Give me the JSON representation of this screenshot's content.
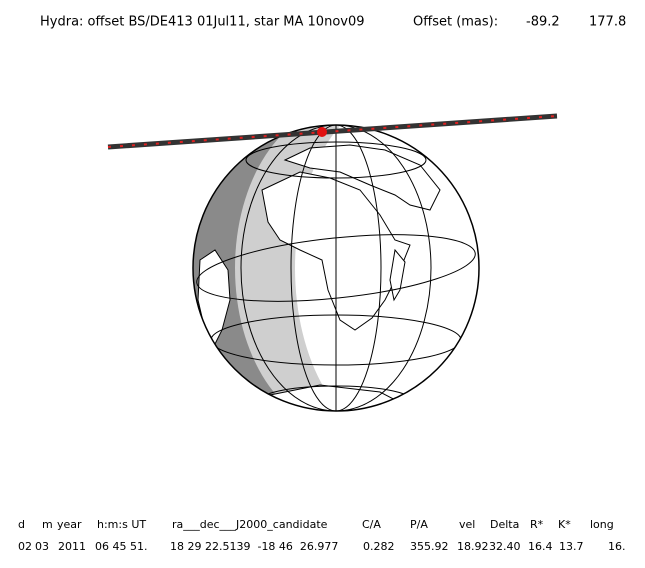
{
  "header": {
    "title": "Hydra: offset BS/DE413 01Jul11, star MA 10nov09",
    "offset_label": "Offset (mas):",
    "offset_values": [
      "-89.2",
      "177.8"
    ]
  },
  "table": {
    "columns": [
      "d",
      "m",
      "year",
      "h:m:s UT",
      "ra___dec___J2000_candidate",
      "C/A",
      "P/A",
      "vel",
      "Delta",
      "R*",
      "K*",
      "long"
    ],
    "rows": [
      [
        "02",
        "03",
        "2011",
        "06 45 51.",
        "18 29 22.5139  -18 46  26.977",
        "0.282",
        "355.92",
        "18.92",
        "32.40",
        "16.4",
        "13.7",
        "16."
      ]
    ]
  }
}
